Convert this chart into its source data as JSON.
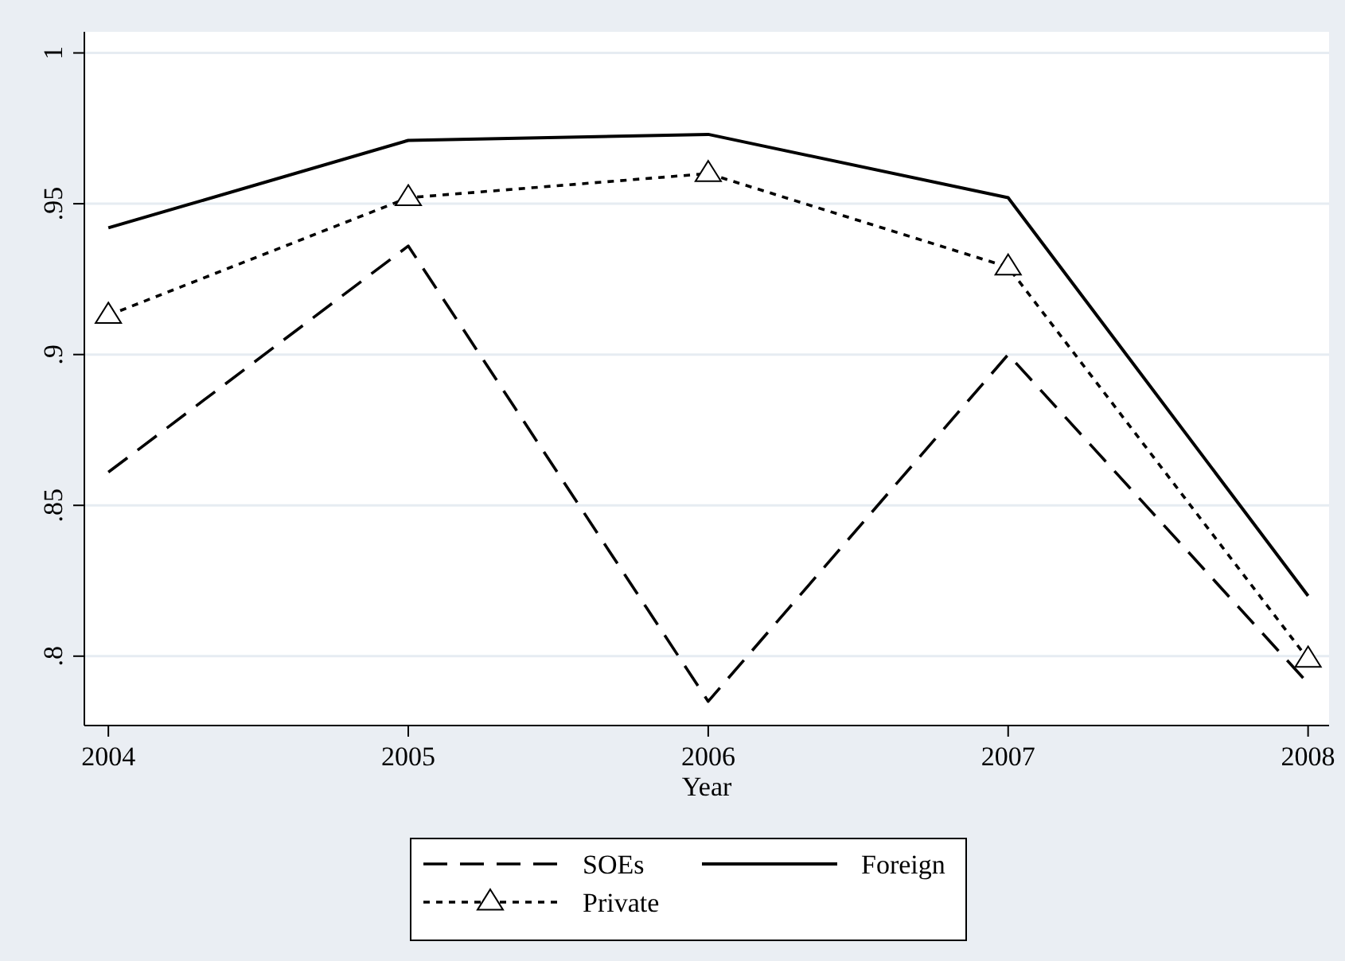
{
  "chart_data": {
    "type": "line",
    "xlabel": "Year",
    "x": [
      2004,
      2005,
      2006,
      2007,
      2008
    ],
    "xlim": [
      2003.92,
      2008.07
    ],
    "xticks": [
      2004,
      2005,
      2006,
      2007,
      2008
    ],
    "ylim": [
      0.777,
      1.007
    ],
    "yticks": [
      {
        "value": 0.8,
        "label": ".8"
      },
      {
        "value": 0.85,
        "label": ".85"
      },
      {
        "value": 0.9,
        "label": ".9"
      },
      {
        "value": 0.95,
        "label": ".95"
      },
      1
    ],
    "grid": "y",
    "legend": "bottom",
    "series": [
      {
        "name": "SOEs",
        "color": "#000000",
        "line_style": "dashed",
        "marker": "none",
        "values": [
          0.861,
          0.936,
          0.785,
          0.9,
          0.791
        ]
      },
      {
        "name": "Foreign",
        "color": "#000000",
        "line_style": "solid",
        "marker": "none",
        "values": [
          0.942,
          0.971,
          0.973,
          0.952,
          0.82
        ]
      },
      {
        "name": "Private",
        "color": "#000000",
        "line_style": "dotted",
        "marker": "triangle",
        "values": [
          0.913,
          0.952,
          0.96,
          0.929,
          0.799
        ]
      }
    ]
  }
}
